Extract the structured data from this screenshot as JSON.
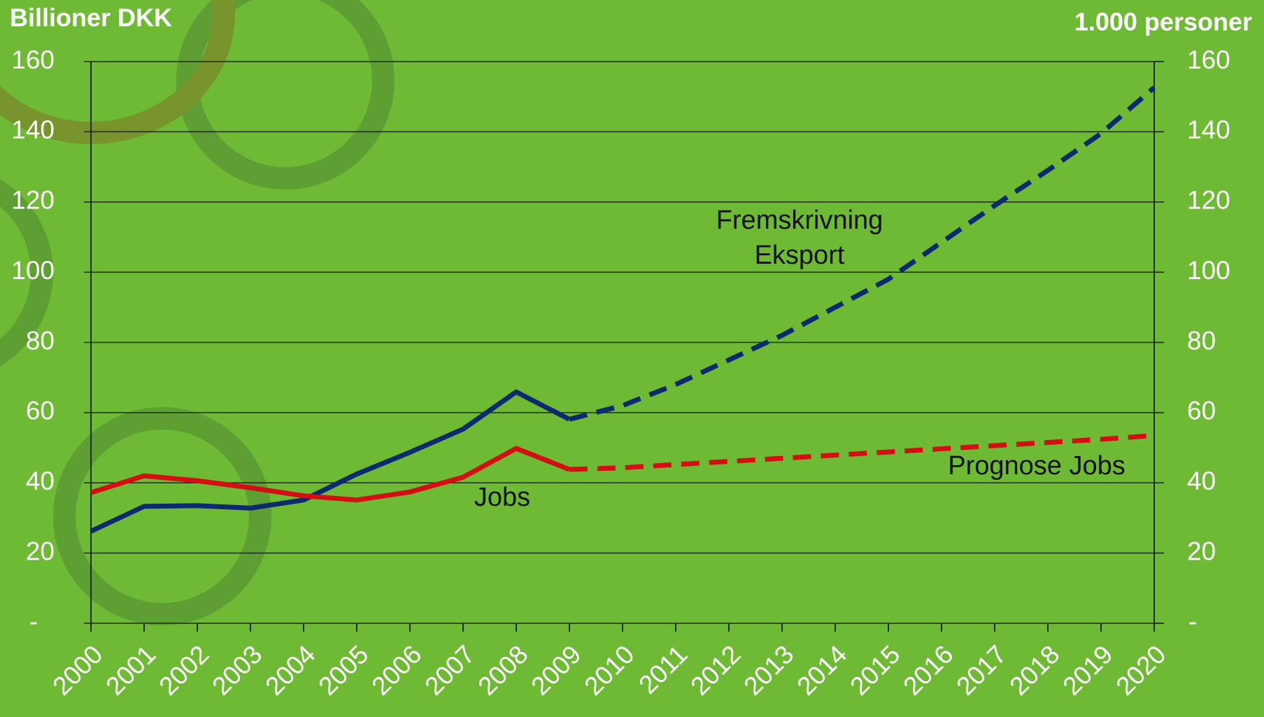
{
  "chart_data": {
    "type": "line",
    "y_label": "Billioner DKK",
    "y2_label": "1.000 personer",
    "categories": [
      "2000",
      "2001",
      "2002",
      "2003",
      "2004",
      "2005",
      "2006",
      "2007",
      "2008",
      "2009",
      "2010",
      "2011",
      "2012",
      "2013",
      "2014",
      "2015",
      "2016",
      "2017",
      "2018",
      "2019",
      "2020"
    ],
    "series": [
      {
        "color": "#0d2a6e",
        "dashed": false,
        "values": [
          26.2,
          33.3,
          33.5,
          32.8,
          35.1,
          42.5,
          48.7,
          55.3,
          65.9,
          58.1,
          null,
          null,
          null,
          null,
          null,
          null,
          null,
          null,
          null,
          null,
          null
        ]
      },
      {
        "color": "#0d2a6e",
        "dashed": true,
        "values": [
          null,
          null,
          null,
          null,
          null,
          null,
          null,
          null,
          null,
          58.1,
          62,
          68,
          75,
          82,
          90,
          98,
          108.5,
          119,
          129,
          139.5,
          152.6
        ]
      },
      {
        "color": "#d40f14",
        "dashed": false,
        "axis": "y2",
        "values": [
          37.2,
          42,
          40.6,
          38.6,
          36.3,
          35.1,
          37.4,
          41.6,
          49.8,
          43.8,
          null,
          null,
          null,
          null,
          null,
          null,
          null,
          null,
          null,
          null,
          null
        ]
      },
      {
        "color": "#d40f14",
        "dashed": true,
        "axis": "y2",
        "values": [
          null,
          null,
          null,
          null,
          null,
          null,
          null,
          null,
          null,
          43.8,
          44.3,
          45.2,
          46.1,
          47,
          47.9,
          48.8,
          49.7,
          50.6,
          51.5,
          52.4,
          53.5
        ]
      }
    ],
    "annotations": [
      "Fremskrivning",
      "Eksport",
      "Jobs",
      "Prognose Jobs"
    ],
    "ylim": [
      0,
      160
    ],
    "yticks": [
      {
        "value": 0,
        "label": "-"
      },
      20,
      40,
      60,
      80,
      100,
      120,
      140,
      160
    ],
    "y2lim": [
      0,
      160
    ],
    "y2ticks": [
      {
        "value": 0,
        "label": "-"
      },
      20,
      40,
      60,
      80,
      100,
      120,
      140,
      160
    ],
    "grid": true
  }
}
